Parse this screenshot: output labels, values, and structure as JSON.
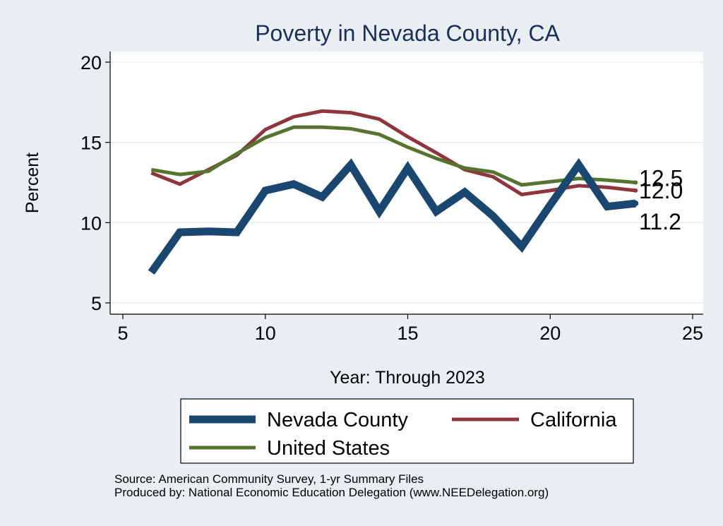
{
  "chart_data": {
    "type": "line",
    "title": "Poverty in Nevada County, CA",
    "xlabel": "Year: Through 2023",
    "ylabel": "Percent",
    "xlim": [
      5,
      25
    ],
    "ylim": [
      5,
      20
    ],
    "xticks": [
      5,
      10,
      15,
      20,
      25
    ],
    "yticks": [
      5,
      10,
      15,
      20
    ],
    "grid": "horizontal",
    "legend_position": "bottom",
    "x": [
      6,
      7,
      8,
      9,
      10,
      11,
      12,
      13,
      14,
      15,
      16,
      17,
      18,
      19,
      20,
      21,
      22,
      23
    ],
    "series": [
      {
        "name": "Nevada County",
        "color": "#1a476f",
        "width": "thick",
        "values": [
          6.9,
          9.4,
          9.45,
          9.4,
          12.0,
          12.4,
          11.6,
          13.6,
          10.7,
          13.4,
          10.7,
          11.9,
          10.4,
          8.5,
          11.1,
          13.6,
          11.0,
          11.2
        ],
        "end_label": "11.2"
      },
      {
        "name": "California",
        "color": "#90353b",
        "width": "thin",
        "values": [
          13.1,
          12.4,
          13.3,
          14.2,
          15.8,
          16.6,
          16.95,
          16.85,
          16.45,
          15.35,
          14.35,
          13.3,
          12.85,
          11.75,
          12.0,
          12.3,
          12.2,
          12.0
        ],
        "end_label": "12.0"
      },
      {
        "name": "United States",
        "color": "#55752f",
        "width": "thin",
        "values": [
          13.3,
          13.0,
          13.2,
          14.3,
          15.3,
          15.95,
          15.95,
          15.85,
          15.5,
          14.7,
          14.0,
          13.4,
          13.15,
          12.35,
          12.55,
          12.75,
          12.65,
          12.5
        ],
        "end_label": "12.5"
      }
    ],
    "legend": [
      "Nevada County",
      "California",
      "United States"
    ]
  },
  "footer": {
    "source": "Source: American Community Survey, 1-yr Summary Files",
    "produced_by": "Produced by: National Economic Education Delegation (www.NEEDelegation.org)"
  },
  "colors": {
    "background": "#e9eef3",
    "plot_background": "#ffffff",
    "grid": "#e9eef3",
    "title": "#1a2f5a"
  }
}
